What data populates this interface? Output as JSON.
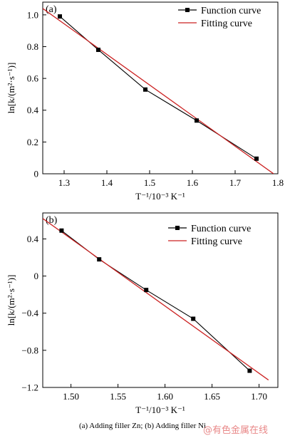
{
  "caption": "(a)   Adding filler Zn; (b) Adding filler Ni",
  "watermark": "@有色金属在线",
  "colors": {
    "function": "#000000",
    "fitting": "#cc2222",
    "axis": "#000000"
  },
  "chart_data": [
    {
      "type": "line",
      "panel_label": "(a)",
      "xlabel": "T⁻¹/10⁻³ K⁻¹",
      "ylabel": "ln[k/(m²·s⁻¹)]",
      "xlim": [
        1.25,
        1.8
      ],
      "ylim": [
        0,
        1.08
      ],
      "xticks": [
        1.3,
        1.4,
        1.5,
        1.6,
        1.7,
        1.8
      ],
      "yticks": [
        0,
        0.2,
        0.4,
        0.6,
        0.8,
        1.0
      ],
      "xtick_labels": [
        "1.3",
        "1.4",
        "1.5",
        "1.6",
        "1.7",
        "1.8"
      ],
      "ytick_labels": [
        "0",
        "0.2",
        "0.4",
        "0.6",
        "0.8",
        "1.0"
      ],
      "legend_position": "top-right",
      "series": [
        {
          "name": "Function curve",
          "kind": "line-marker",
          "x": [
            1.29,
            1.38,
            1.49,
            1.61,
            1.75
          ],
          "y": [
            0.99,
            0.78,
            0.53,
            0.335,
            0.095
          ]
        },
        {
          "name": "Fitting curve",
          "kind": "line",
          "x": [
            1.25,
            1.79
          ],
          "y": [
            1.04,
            0.0
          ]
        }
      ]
    },
    {
      "type": "line",
      "panel_label": "(b)",
      "xlabel": "T⁻¹/10⁻³ K⁻¹",
      "ylabel": "ln[k/(m²·s⁻¹)]",
      "xlim": [
        1.47,
        1.72
      ],
      "ylim": [
        -1.2,
        0.68
      ],
      "xticks": [
        1.5,
        1.55,
        1.6,
        1.65,
        1.7
      ],
      "yticks": [
        -1.2,
        -0.8,
        -0.4,
        0,
        0.4
      ],
      "xtick_labels": [
        "1.50",
        "1.55",
        "1.60",
        "1.65",
        "1.70"
      ],
      "ytick_labels": [
        "−1.2",
        "−0.8",
        "−0.4",
        "0",
        "0.4"
      ],
      "legend_position": "top-right",
      "series": [
        {
          "name": "Function curve",
          "kind": "line-marker",
          "x": [
            1.49,
            1.53,
            1.58,
            1.63,
            1.69
          ],
          "y": [
            0.49,
            0.18,
            -0.15,
            -0.46,
            -1.02
          ]
        },
        {
          "name": "Fitting curve",
          "kind": "line",
          "x": [
            1.47,
            1.71
          ],
          "y": [
            0.62,
            -1.12
          ]
        }
      ]
    }
  ]
}
